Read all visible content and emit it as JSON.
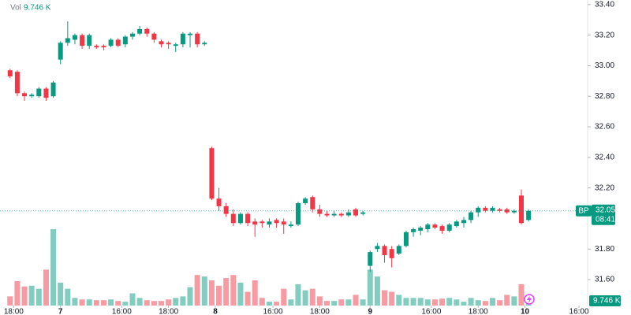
{
  "chart_data": {
    "type": "candlestick",
    "volume_title": "Vol",
    "last_volume_label": "9.746 K",
    "symbol": "BP",
    "last_price": 32.05,
    "countdown": "08:41",
    "up_color": "#089981",
    "down_color": "#f23645",
    "open": [
      32.97,
      32.96,
      32.82,
      32.8,
      32.8,
      32.85,
      32.8,
      33.04,
      33.15,
      33.17,
      33.2,
      33.13,
      33.13,
      33.13,
      33.13,
      33.17,
      33.14,
      33.19,
      33.21,
      33.24,
      33.21,
      33.16,
      33.15,
      33.13,
      33.14,
      33.2,
      33.21,
      33.14,
      32.46,
      32.13,
      32.08,
      32.03,
      31.97,
      32.03,
      31.98,
      31.98,
      31.96,
      31.99,
      31.98,
      31.95,
      31.96,
      32.1,
      32.14,
      32.06,
      32.03,
      32.02,
      32.03,
      32.02,
      32.06,
      32.03,
      31.69,
      31.8,
      31.82,
      31.8,
      31.77,
      31.82,
      31.91,
      31.92,
      31.93,
      31.96,
      31.95,
      31.92,
      31.95,
      31.97,
      31.99,
      32.04,
      32.07,
      32.05,
      32.06,
      32.06,
      32.04,
      32.15,
      31.99
    ],
    "high": [
      32.98,
      32.97,
      32.83,
      32.82,
      32.86,
      32.86,
      32.9,
      33.16,
      33.29,
      33.21,
      33.21,
      33.21,
      33.14,
      33.14,
      33.18,
      33.18,
      33.2,
      33.22,
      33.26,
      33.25,
      33.22,
      33.17,
      33.16,
      33.15,
      33.22,
      33.22,
      33.22,
      33.16,
      32.47,
      32.2,
      32.1,
      32.06,
      32.04,
      32.04,
      32.0,
      31.99,
      32.0,
      32.0,
      32.0,
      31.98,
      32.11,
      32.14,
      32.15,
      32.09,
      32.05,
      32.05,
      32.04,
      32.06,
      32.07,
      32.05,
      31.79,
      31.84,
      31.83,
      31.82,
      31.83,
      31.92,
      31.94,
      31.95,
      31.97,
      31.97,
      31.96,
      31.97,
      31.99,
      32.01,
      32.05,
      32.08,
      32.08,
      32.08,
      32.07,
      32.07,
      32.06,
      32.19,
      32.06
    ],
    "low": [
      32.92,
      32.8,
      32.77,
      32.79,
      32.79,
      32.77,
      32.79,
      33.01,
      33.13,
      33.14,
      33.11,
      33.11,
      33.11,
      33.1,
      33.12,
      33.12,
      33.12,
      33.17,
      33.2,
      33.19,
      33.15,
      33.12,
      33.11,
      33.09,
      33.12,
      33.12,
      33.12,
      33.13,
      32.12,
      32.05,
      32.01,
      31.95,
      31.96,
      31.95,
      31.88,
      31.94,
      31.94,
      31.94,
      31.9,
      31.94,
      31.95,
      32.09,
      32.04,
      32.01,
      32.01,
      32.01,
      32.01,
      32.01,
      32.01,
      32.02,
      31.65,
      31.78,
      31.71,
      31.68,
      31.76,
      31.81,
      31.88,
      31.89,
      31.91,
      31.93,
      31.9,
      31.91,
      31.94,
      31.94,
      31.97,
      32.01,
      32.04,
      32.04,
      32.04,
      32.03,
      32.03,
      31.96,
      31.98
    ],
    "close": [
      32.93,
      32.82,
      32.8,
      32.81,
      32.85,
      32.79,
      32.89,
      33.15,
      33.18,
      33.2,
      33.13,
      33.2,
      33.12,
      33.12,
      33.17,
      33.13,
      33.19,
      33.21,
      33.24,
      33.21,
      33.17,
      33.14,
      33.14,
      33.14,
      33.21,
      33.21,
      33.14,
      33.15,
      32.13,
      32.08,
      32.03,
      31.97,
      32.03,
      31.97,
      31.96,
      31.97,
      31.98,
      31.97,
      31.96,
      31.96,
      32.1,
      32.13,
      32.06,
      32.03,
      32.02,
      32.03,
      32.02,
      32.04,
      32.02,
      32.04,
      31.78,
      31.82,
      31.76,
      31.74,
      31.82,
      31.91,
      31.93,
      31.94,
      31.96,
      31.94,
      31.92,
      31.96,
      31.98,
      31.99,
      32.04,
      32.07,
      32.05,
      32.07,
      32.05,
      32.04,
      32.05,
      31.97,
      32.05
    ],
    "volume": [
      12,
      32,
      25,
      26,
      22,
      47,
      100,
      30,
      22,
      10,
      8,
      8,
      7,
      7,
      8,
      6,
      5,
      16,
      10,
      7,
      6,
      6,
      8,
      10,
      12,
      24,
      40,
      38,
      33,
      26,
      36,
      40,
      30,
      18,
      33,
      10,
      5,
      5,
      22,
      8,
      28,
      20,
      22,
      12,
      6,
      6,
      8,
      8,
      14,
      8,
      47,
      38,
      20,
      18,
      14,
      10,
      10,
      10,
      8,
      8,
      9,
      10,
      8,
      5,
      10,
      7,
      6,
      10,
      7,
      14,
      12,
      28,
      9.746
    ],
    "ylim": [
      31.43,
      33.43
    ],
    "yticks": [
      {
        "value": 33.4,
        "label": "33.40"
      },
      {
        "value": 33.2,
        "label": "33.20"
      },
      {
        "value": 33.0,
        "label": "33.00"
      },
      {
        "value": 32.8,
        "label": "32.80"
      },
      {
        "value": 32.6,
        "label": "32.60"
      },
      {
        "value": 32.4,
        "label": "32.40"
      },
      {
        "value": 32.2,
        "label": "32.20"
      },
      {
        "value": 31.8,
        "label": "31.80"
      },
      {
        "value": 31.6,
        "label": "31.60"
      }
    ],
    "vlim": [
      0,
      400
    ],
    "xlim": [
      -1.4,
      80.2
    ],
    "xticks": [
      {
        "value": 0.5,
        "label": "18:00"
      },
      {
        "value": 7,
        "label": "7"
      },
      {
        "value": 15.5,
        "label": "16:00"
      },
      {
        "value": 22,
        "label": "18:00"
      },
      {
        "value": 28.5,
        "label": "8"
      },
      {
        "value": 36.5,
        "label": "16:00"
      },
      {
        "value": 43,
        "label": "18:00"
      },
      {
        "value": 50,
        "label": "9"
      },
      {
        "value": 58.5,
        "label": "16:00"
      },
      {
        "value": 65,
        "label": "18:00"
      },
      {
        "value": 71.5,
        "label": "10"
      },
      {
        "value": 79,
        "label": "16:00"
      }
    ]
  }
}
